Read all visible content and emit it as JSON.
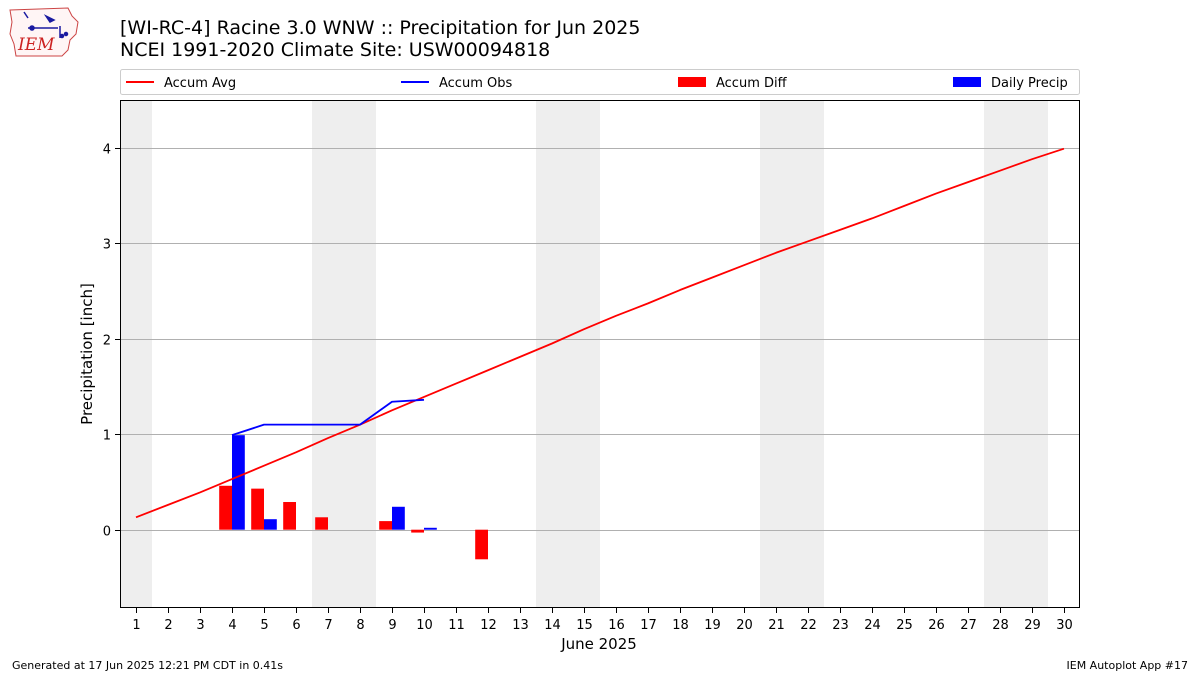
{
  "title_line1": "[WI-RC-4] Racine 3.0 WNW :: Precipitation for Jun 2025",
  "title_line2": "NCEI 1991-2020 Climate Site: USW00094818",
  "logo_text": "IEM",
  "footer_left": "Generated at 17 Jun 2025 12:21 PM CDT in 0.41s",
  "footer_right": "IEM Autoplot App #17",
  "colors": {
    "accum_avg": "#ff0000",
    "accum_obs": "#0000ff",
    "accum_diff": "#ff0000",
    "daily_precip": "#0000ff",
    "weekend_shade": "#eeeeee",
    "grid": "#b0b0b0"
  },
  "chart_data": {
    "type": "line",
    "xlabel": "June 2025",
    "ylabel": "Precipitation [inch]",
    "x": [
      1,
      2,
      3,
      4,
      5,
      6,
      7,
      8,
      9,
      10,
      11,
      12,
      13,
      14,
      15,
      16,
      17,
      18,
      19,
      20,
      21,
      22,
      23,
      24,
      25,
      26,
      27,
      28,
      29,
      30
    ],
    "xlim": [
      0.5,
      30.5
    ],
    "ylim": [
      -0.82,
      4.5
    ],
    "yticks": [
      0,
      1,
      2,
      3,
      4
    ],
    "grid": "y",
    "legend": "top",
    "weekend_days": [
      1,
      7,
      8,
      14,
      15,
      21,
      22,
      28,
      29
    ],
    "series": [
      {
        "name": "Accum Avg",
        "type": "line",
        "x": [
          1,
          2,
          3,
          4,
          5,
          6,
          7,
          8,
          9,
          10,
          11,
          12,
          13,
          14,
          15,
          16,
          17,
          18,
          19,
          20,
          21,
          22,
          23,
          24,
          25,
          26,
          27,
          28,
          29,
          30
        ],
        "values": [
          0.13,
          0.26,
          0.39,
          0.53,
          0.67,
          0.81,
          0.96,
          1.1,
          1.25,
          1.39,
          1.53,
          1.67,
          1.81,
          1.95,
          2.1,
          2.24,
          2.37,
          2.51,
          2.64,
          2.77,
          2.9,
          3.02,
          3.14,
          3.26,
          3.39,
          3.52,
          3.64,
          3.76,
          3.88,
          3.99
        ]
      },
      {
        "name": "Accum Obs",
        "type": "line",
        "x": [
          4,
          5,
          6,
          7,
          8,
          9,
          10
        ],
        "values": [
          0.99,
          1.1,
          1.1,
          1.1,
          1.1,
          1.34,
          1.36
        ]
      },
      {
        "name": "Accum Diff",
        "type": "bar",
        "x": [
          4,
          5,
          6,
          7,
          9,
          10,
          12
        ],
        "values": [
          0.46,
          0.43,
          0.29,
          0.13,
          0.09,
          -0.03,
          -0.31
        ]
      },
      {
        "name": "Daily Precip",
        "type": "bar",
        "x": [
          4,
          5,
          9,
          10
        ],
        "values": [
          0.99,
          0.11,
          0.24,
          0.02
        ]
      }
    ]
  }
}
